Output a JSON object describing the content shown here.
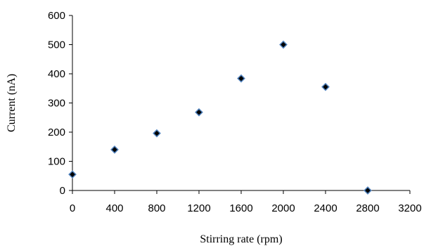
{
  "chart_data": {
    "type": "scatter",
    "title": "",
    "xlabel": "Stirring rate (rpm)",
    "ylabel": "Current (nA)",
    "xlim": [
      0,
      3200
    ],
    "ylim": [
      0,
      600
    ],
    "x_ticks": [
      "0",
      "400",
      "800",
      "1200",
      "1600",
      "2000",
      "2400",
      "2800",
      "3200"
    ],
    "y_ticks": [
      "0",
      "100",
      "200",
      "300",
      "400",
      "500",
      "600"
    ],
    "grid": false,
    "legend": "none",
    "marker": "diamond",
    "marker_color": "#000000",
    "marker_edge_color": "#4f81bd",
    "series": [
      {
        "x": [
          0,
          400,
          800,
          1200,
          1600,
          2000,
          2400,
          2800
        ],
        "y": [
          55,
          140,
          196,
          268,
          384,
          500,
          355,
          0
        ]
      }
    ]
  }
}
